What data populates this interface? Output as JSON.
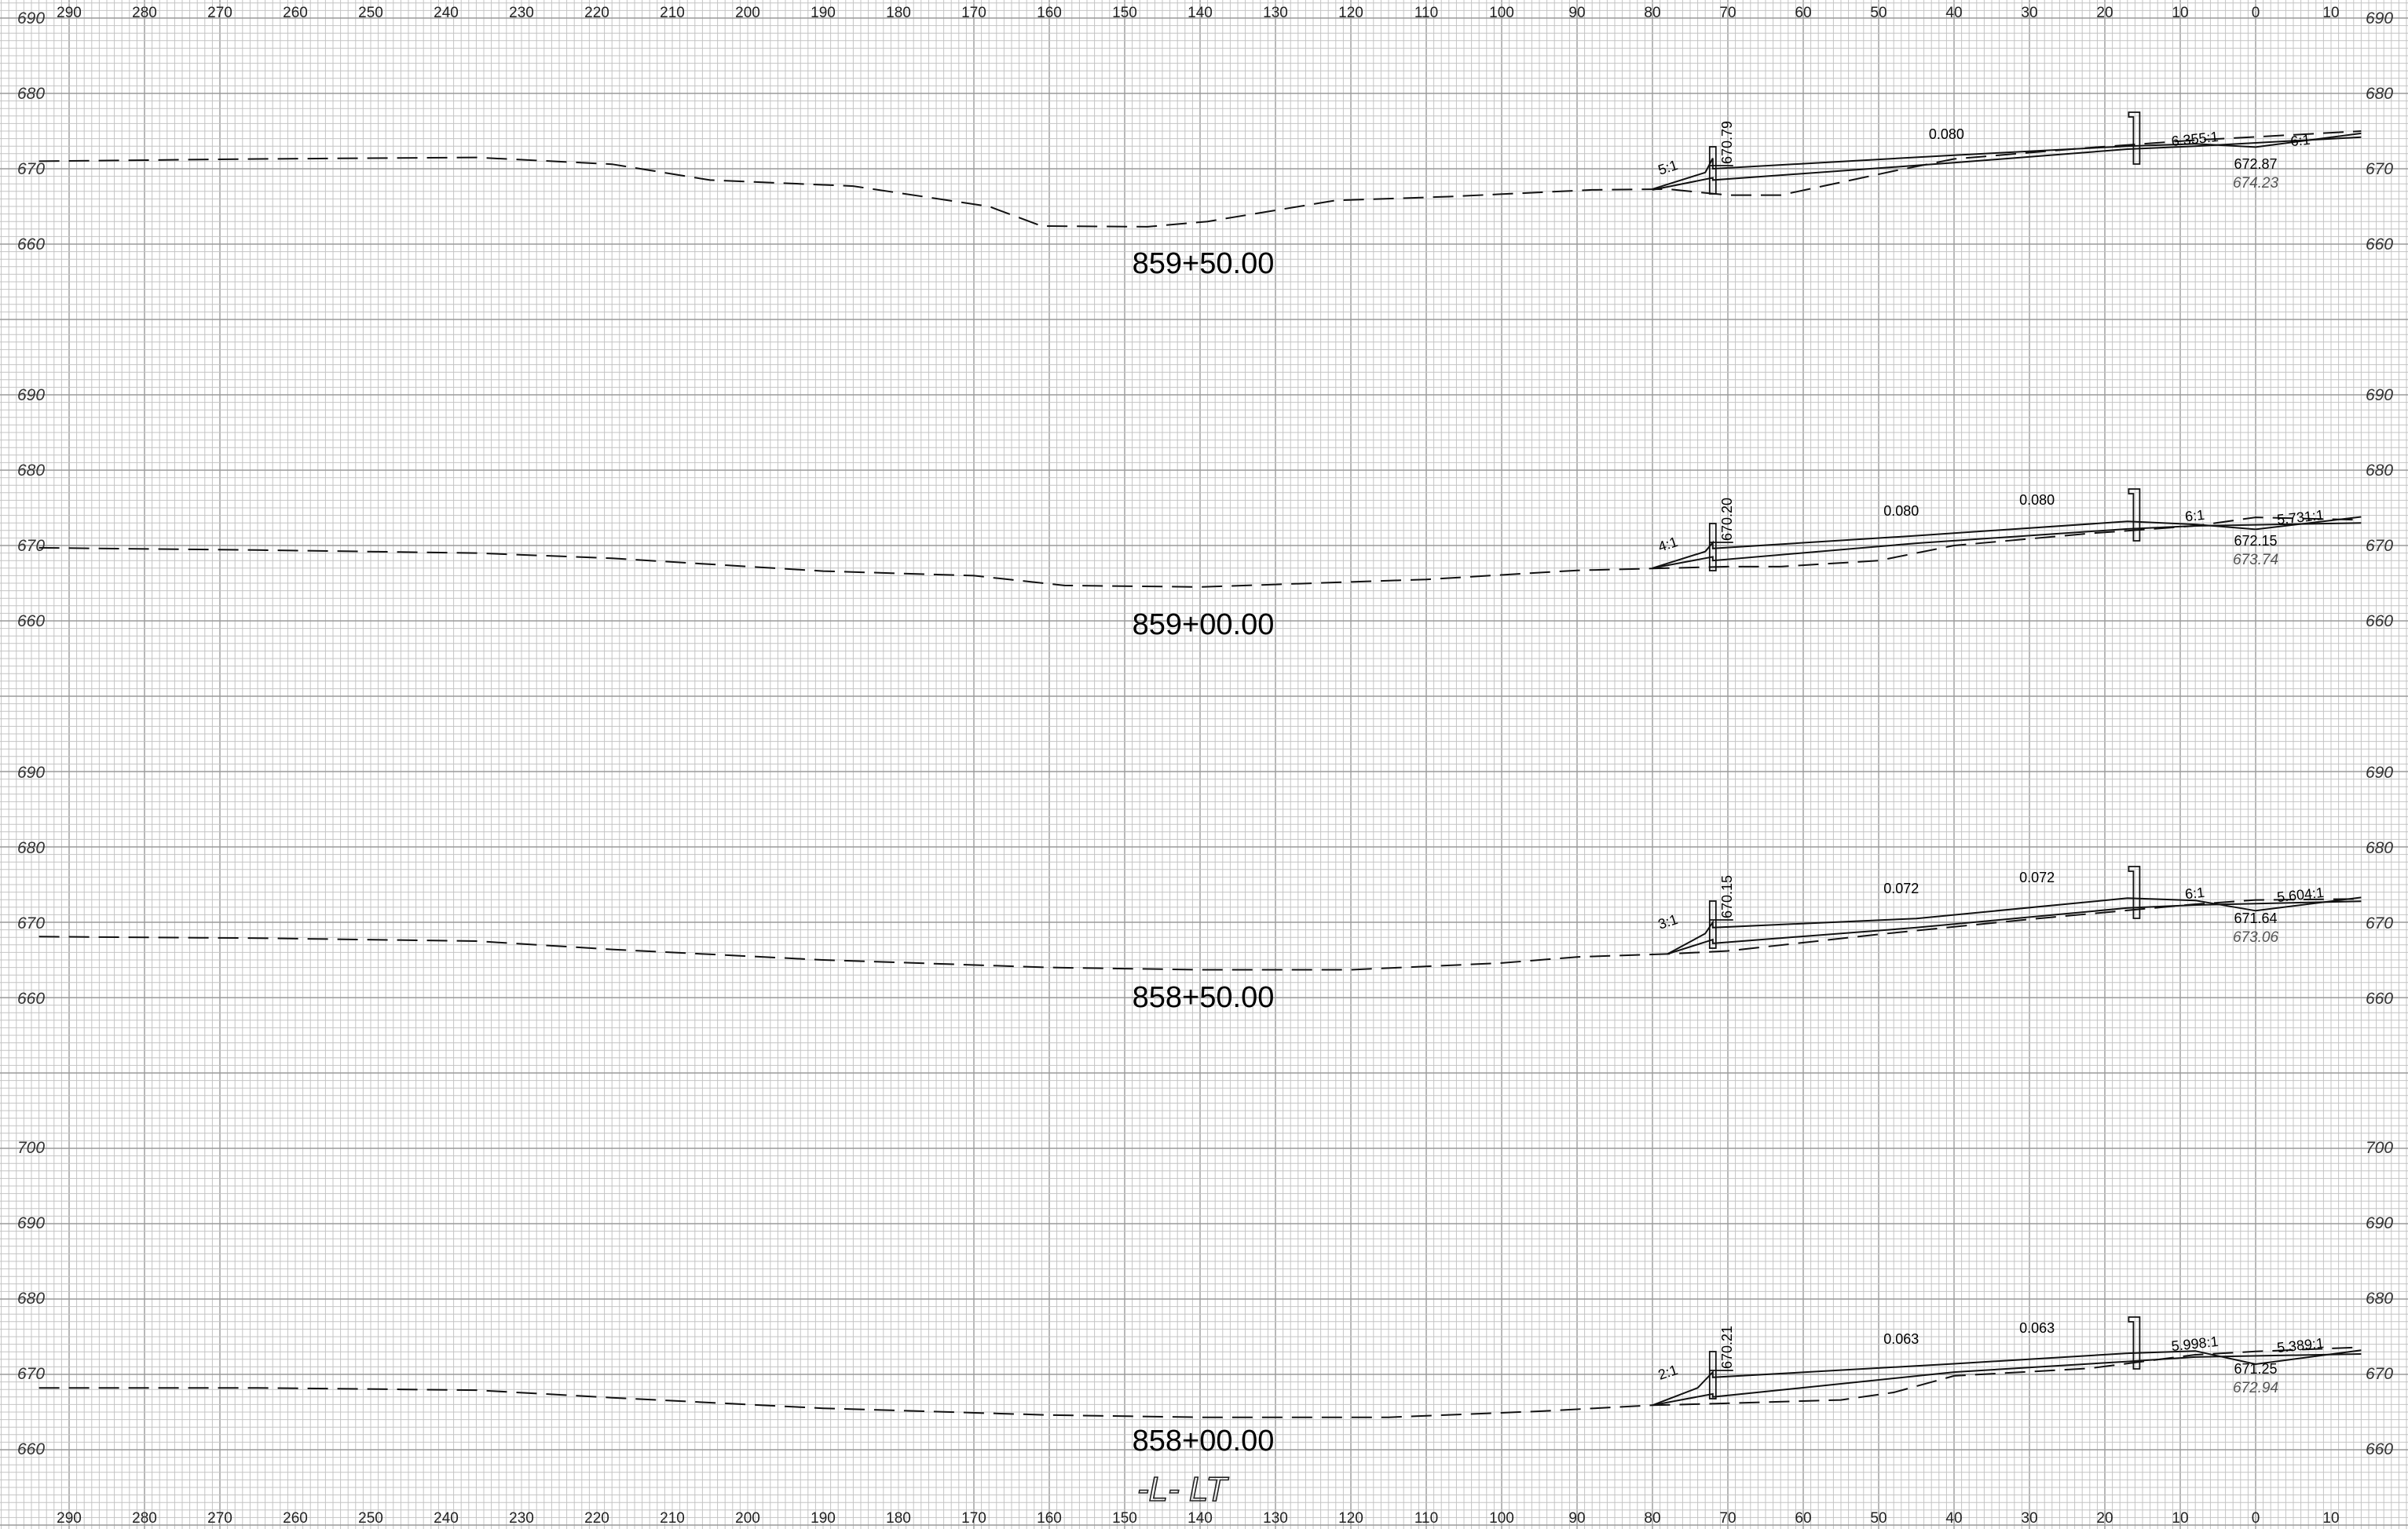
{
  "colors": {
    "background": "#ffffff",
    "grid_minor": "#c4c4c4",
    "grid_major": "#9a9a9a",
    "ink": "#111111"
  },
  "offset_labels": [
    "290",
    "280",
    "270",
    "260",
    "250",
    "240",
    "230",
    "220",
    "210",
    "200",
    "190",
    "180",
    "170",
    "160",
    "150",
    "140",
    "130",
    "120",
    "110",
    "100",
    "90",
    "80",
    "70",
    "60",
    "50",
    "40",
    "30",
    "20",
    "10",
    "0",
    "10"
  ],
  "alignment_label": "-L- LT",
  "sections": [
    {
      "station": "859+50.00",
      "elevations": [
        "690",
        "680",
        "670",
        "660"
      ],
      "left_slope": "5:1",
      "left_elev": "670.79",
      "grades": [
        "0.080"
      ],
      "right_slopes": [
        "6.355:1",
        "6:1"
      ],
      "cl_elev_proposed": "672.87",
      "cl_elev_existing": "674.23",
      "ground_profile": [
        [
          294,
          671.0
        ],
        [
          265,
          671.3
        ],
        [
          236,
          671.5
        ],
        [
          218,
          670.6
        ],
        [
          205,
          668.5
        ],
        [
          186,
          667.7
        ],
        [
          168,
          665.0
        ],
        [
          161,
          662.4
        ],
        [
          147,
          662.3
        ],
        [
          139,
          663.0
        ],
        [
          122,
          665.8
        ],
        [
          107,
          666.3
        ],
        [
          88,
          667.2
        ],
        [
          78,
          667.3
        ],
        [
          70,
          666.5
        ],
        [
          63,
          666.5
        ],
        [
          48,
          669.7
        ],
        [
          40,
          671.3
        ],
        [
          22,
          672.8
        ],
        [
          8,
          673.8
        ],
        [
          0,
          674.23
        ],
        [
          -14,
          675.0
        ]
      ],
      "proposed_profile": [
        [
          80,
          667.3
        ],
        [
          73,
          669.5
        ],
        [
          72,
          671.4
        ],
        [
          72,
          670.0
        ],
        [
          40,
          671.8
        ],
        [
          17,
          673.0
        ],
        [
          8,
          673.3
        ],
        [
          0,
          672.87
        ],
        [
          -14,
          674.7
        ]
      ],
      "proposed_inner": [
        [
          80,
          667.2
        ],
        [
          72,
          668.8
        ],
        [
          72,
          668.5
        ],
        [
          40,
          670.8
        ],
        [
          17,
          672.6
        ],
        [
          8,
          673.0
        ],
        [
          -14,
          674.2
        ]
      ]
    },
    {
      "station": "859+00.00",
      "elevations": [
        "690",
        "680",
        "670",
        "660"
      ],
      "left_slope": "4:1",
      "left_elev": "670.20",
      "grades": [
        "0.080",
        "0.080"
      ],
      "right_slopes": [
        "6:1",
        "5.731:1"
      ],
      "cl_elev_proposed": "672.15",
      "cl_elev_existing": "673.74",
      "ground_profile": [
        [
          294,
          669.7
        ],
        [
          265,
          669.4
        ],
        [
          236,
          669.0
        ],
        [
          218,
          668.3
        ],
        [
          190,
          666.6
        ],
        [
          170,
          666.0
        ],
        [
          158,
          664.7
        ],
        [
          140,
          664.5
        ],
        [
          110,
          665.5
        ],
        [
          90,
          666.7
        ],
        [
          78,
          667.0
        ],
        [
          70,
          667.2
        ],
        [
          63,
          667.2
        ],
        [
          50,
          668.0
        ],
        [
          40,
          670.0
        ],
        [
          22,
          671.6
        ],
        [
          8,
          672.6
        ],
        [
          0,
          673.74
        ],
        [
          -14,
          673.4
        ]
      ],
      "proposed_profile": [
        [
          80,
          667.0
        ],
        [
          73,
          669.2
        ],
        [
          72,
          670.4
        ],
        [
          72,
          669.6
        ],
        [
          45,
          671.3
        ],
        [
          17,
          673.2
        ],
        [
          8,
          672.8
        ],
        [
          0,
          672.15
        ],
        [
          -14,
          673.8
        ]
      ],
      "proposed_inner": [
        [
          80,
          667.0
        ],
        [
          72,
          668.5
        ],
        [
          72,
          668.0
        ],
        [
          45,
          670.3
        ],
        [
          17,
          672.2
        ],
        [
          8,
          672.6
        ],
        [
          -14,
          673.0
        ]
      ]
    },
    {
      "station": "858+50.00",
      "elevations": [
        "690",
        "680",
        "670",
        "660"
      ],
      "left_slope": "3:1",
      "left_elev": "670.15",
      "grades": [
        "0.072",
        "0.072"
      ],
      "right_slopes": [
        "6:1",
        "5.604:1"
      ],
      "cl_elev_proposed": "671.64",
      "cl_elev_existing": "673.06",
      "ground_profile": [
        [
          294,
          668.2
        ],
        [
          265,
          668.0
        ],
        [
          236,
          667.6
        ],
        [
          218,
          666.5
        ],
        [
          190,
          665.1
        ],
        [
          160,
          664.1
        ],
        [
          140,
          663.8
        ],
        [
          120,
          663.8
        ],
        [
          100,
          664.7
        ],
        [
          90,
          665.5
        ],
        [
          78,
          665.9
        ],
        [
          70,
          666.3
        ],
        [
          50,
          668.5
        ],
        [
          30,
          670.5
        ],
        [
          8,
          672.5
        ],
        [
          0,
          673.06
        ],
        [
          -14,
          673.2
        ]
      ],
      "proposed_profile": [
        [
          78,
          665.9
        ],
        [
          73,
          668.6
        ],
        [
          72,
          670.1
        ],
        [
          72,
          669.4
        ],
        [
          45,
          670.6
        ],
        [
          17,
          673.3
        ],
        [
          8,
          673.0
        ],
        [
          0,
          671.64
        ],
        [
          -14,
          673.4
        ]
      ],
      "proposed_inner": [
        [
          78,
          665.9
        ],
        [
          72,
          667.8
        ],
        [
          72,
          667.3
        ],
        [
          45,
          669.4
        ],
        [
          17,
          672.0
        ],
        [
          8,
          672.4
        ],
        [
          -14,
          672.9
        ]
      ]
    },
    {
      "station": "858+00.00",
      "elevations": [
        "700",
        "690",
        "680",
        "670",
        "660"
      ],
      "left_slope": "2:1",
      "left_elev": "670.21",
      "grades": [
        "0.063",
        "0.063"
      ],
      "right_slopes": [
        "5.998:1",
        "5.389:1"
      ],
      "cl_elev_proposed": "671.25",
      "cl_elev_existing": "672.94",
      "ground_profile": [
        [
          294,
          668.1
        ],
        [
          265,
          668.1
        ],
        [
          236,
          667.8
        ],
        [
          218,
          666.8
        ],
        [
          190,
          665.4
        ],
        [
          160,
          664.5
        ],
        [
          140,
          664.2
        ],
        [
          115,
          664.2
        ],
        [
          95,
          665.0
        ],
        [
          80,
          665.8
        ],
        [
          72,
          666.0
        ],
        [
          55,
          666.5
        ],
        [
          48,
          667.5
        ],
        [
          40,
          669.7
        ],
        [
          22,
          670.7
        ],
        [
          8,
          672.5
        ],
        [
          0,
          672.94
        ],
        [
          -14,
          673.5
        ]
      ],
      "proposed_profile": [
        [
          80,
          665.8
        ],
        [
          74,
          668.1
        ],
        [
          72,
          670.2
        ],
        [
          72,
          669.5
        ],
        [
          40,
          671.3
        ],
        [
          17,
          672.7
        ],
        [
          8,
          673.0
        ],
        [
          0,
          671.25
        ],
        [
          -14,
          673.1
        ]
      ],
      "proposed_inner": [
        [
          80,
          665.8
        ],
        [
          72,
          667.3
        ],
        [
          72,
          666.9
        ],
        [
          40,
          670.2
        ],
        [
          17,
          671.6
        ],
        [
          8,
          672.2
        ],
        [
          -14,
          672.6
        ]
      ]
    }
  ]
}
